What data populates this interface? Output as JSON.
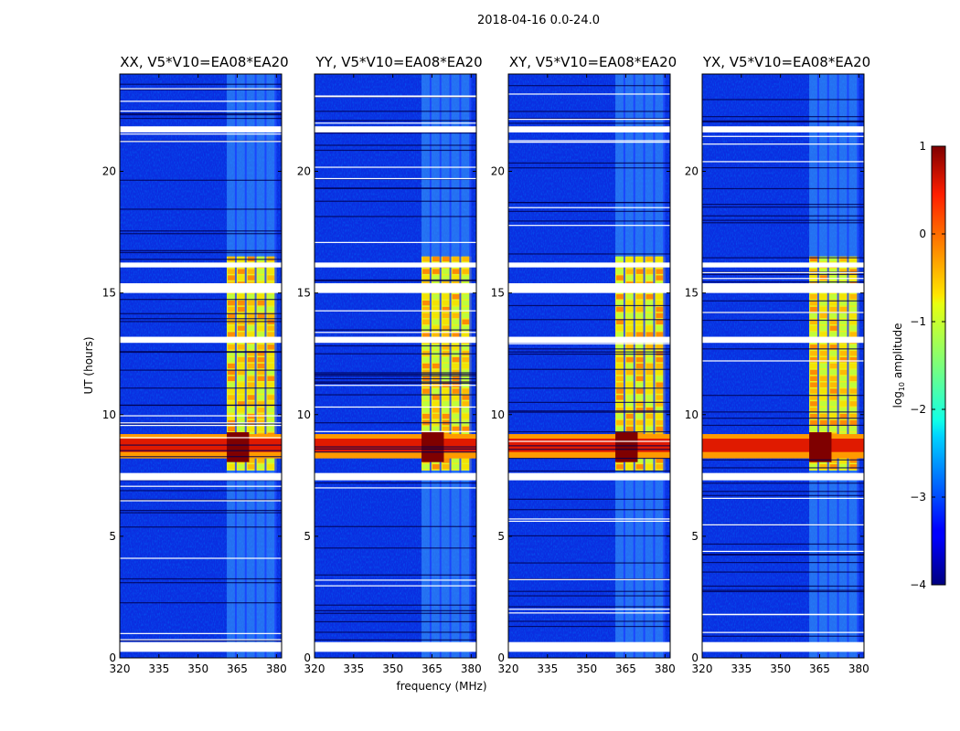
{
  "chart_data": {
    "type": "heatmap",
    "title": "2018-04-16 0.0-24.0",
    "xlabel": "frequency (MHz)",
    "ylabel": "UT (hours)",
    "xlim": [
      320,
      382
    ],
    "ylim": [
      0,
      24
    ],
    "xticks": [
      320,
      335,
      350,
      365,
      380
    ],
    "yticks": [
      0,
      5,
      10,
      15,
      20
    ],
    "panels": [
      {
        "title": "XX, V5*V10=EA08*EA20"
      },
      {
        "title": "YY, V5*V10=EA08*EA20"
      },
      {
        "title": "XY, V5*V10=EA08*EA20"
      },
      {
        "title": "YX, V5*V10=EA08*EA20"
      }
    ],
    "colorbar": {
      "label": "log10 amplitude",
      "label_base": "log",
      "label_sub": "10",
      "label_rest": " amplitude",
      "range": [
        -4,
        1
      ],
      "ticks": [
        1,
        0,
        -1,
        -2,
        -3,
        -4
      ],
      "tick_labels": [
        "1",
        "0",
        "−1",
        "−2",
        "−3",
        "−4"
      ],
      "colormap": "jet"
    },
    "rfi_band_mhz": [
      361,
      380
    ],
    "rfi_strong_ut": [
      7.7,
      16.5
    ],
    "broadband_burst_ut": [
      8.2,
      9.2
    ],
    "flagged_ut": [
      [
        0.25,
        0.65
      ],
      [
        7.3,
        7.6
      ],
      [
        12.95,
        13.2
      ],
      [
        15.0,
        15.4
      ],
      [
        16.05,
        16.25
      ],
      [
        21.6,
        21.85
      ]
    ]
  }
}
